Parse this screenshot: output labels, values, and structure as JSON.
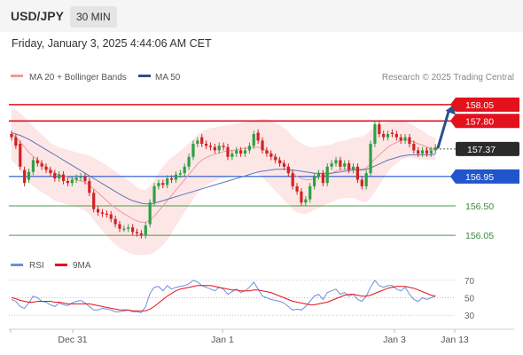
{
  "header": {
    "symbol": "USD/JPY",
    "timeframe": "30 MIN",
    "datetime": "Friday, January 3, 2025 4:44:06 AM CET"
  },
  "legend": {
    "ma20": "MA 20 + Bollinger Bands",
    "ma50": "MA 50",
    "source": "Research © 2025 Trading Central"
  },
  "rsi_legend": {
    "rsi": "RSI",
    "ma9": "9MA"
  },
  "colors": {
    "resistance": "#e3111b",
    "support": "#2255cc",
    "target": "#4a9a4a",
    "candle_up": "#2ea043",
    "candle_down": "#d22222",
    "band_fill": "#fde3e3",
    "ma20": "#f19a9a",
    "ma50": "#5a78b8",
    "arrow": "#2b4f90",
    "rsi_line": "#6f8fd8",
    "rsi_ma": "#e3111b"
  },
  "chart_data": {
    "type": "candlestick",
    "x_ticks": [
      "Dec 31",
      "Jan 1",
      "Jan 3",
      "Jan 13"
    ],
    "y_range": [
      155.82,
      158.32
    ],
    "current_price": 157.37,
    "levels": [
      {
        "value": 158.05,
        "label": "158.05",
        "kind": "resistance"
      },
      {
        "value": 157.8,
        "label": "157.80",
        "kind": "resistance"
      },
      {
        "value": 157.37,
        "label": "157.37",
        "kind": "current"
      },
      {
        "value": 156.95,
        "label": "156.95",
        "kind": "pivot"
      },
      {
        "value": 156.5,
        "label": "156.50",
        "kind": "target"
      },
      {
        "value": 156.05,
        "label": "156.05",
        "kind": "target"
      }
    ],
    "candles_close": [
      157.55,
      157.42,
      157.1,
      156.85,
      157.02,
      157.2,
      157.15,
      157.1,
      157.05,
      157.0,
      156.92,
      156.98,
      156.88,
      156.85,
      156.9,
      156.93,
      156.95,
      156.88,
      156.7,
      156.45,
      156.4,
      156.38,
      156.37,
      156.3,
      156.22,
      156.15,
      156.15,
      156.17,
      156.1,
      156.08,
      156.05,
      156.2,
      156.55,
      156.8,
      156.85,
      156.82,
      156.92,
      156.9,
      156.98,
      157.0,
      157.1,
      157.25,
      157.45,
      157.5,
      157.45,
      157.42,
      157.4,
      157.35,
      157.42,
      157.4,
      157.25,
      157.3,
      157.35,
      157.3,
      157.35,
      157.42,
      157.6,
      157.5,
      157.35,
      157.3,
      157.25,
      157.2,
      157.15,
      157.1,
      157.0,
      156.8,
      156.72,
      156.55,
      156.6,
      156.8,
      156.95,
      157.0,
      156.85,
      157.1,
      157.15,
      157.2,
      157.1,
      157.15,
      157.05,
      157.1,
      156.9,
      156.8,
      157.0,
      157.45,
      157.75,
      157.6,
      157.55,
      157.6,
      157.6,
      157.55,
      157.5,
      157.55,
      157.45,
      157.35,
      157.3,
      157.35,
      157.3,
      157.35,
      157.4
    ],
    "candles_open": [
      157.6,
      157.55,
      157.45,
      157.05,
      156.9,
      157.02,
      157.2,
      157.15,
      157.1,
      157.05,
      157.0,
      156.92,
      156.98,
      156.88,
      156.85,
      156.9,
      156.93,
      156.95,
      156.88,
      156.7,
      156.45,
      156.4,
      156.38,
      156.37,
      156.3,
      156.22,
      156.15,
      156.15,
      156.17,
      156.1,
      156.08,
      156.05,
      156.22,
      156.55,
      156.8,
      156.85,
      156.82,
      156.92,
      156.9,
      156.98,
      157.0,
      157.1,
      157.25,
      157.45,
      157.55,
      157.45,
      157.42,
      157.4,
      157.35,
      157.42,
      157.4,
      157.25,
      157.3,
      157.35,
      157.3,
      157.35,
      157.42,
      157.62,
      157.5,
      157.35,
      157.3,
      157.25,
      157.2,
      157.15,
      157.1,
      157.0,
      156.8,
      156.72,
      156.55,
      156.6,
      156.8,
      156.95,
      157.0,
      156.85,
      157.1,
      157.15,
      157.2,
      157.1,
      157.15,
      157.05,
      157.1,
      156.9,
      156.8,
      157.0,
      157.45,
      157.75,
      157.6,
      157.55,
      157.62,
      157.6,
      157.55,
      157.5,
      157.55,
      157.45,
      157.35,
      157.3,
      157.35,
      157.3,
      157.35
    ],
    "ma20": [
      157.6,
      157.55,
      157.48,
      157.4,
      157.32,
      157.26,
      157.2,
      157.15,
      157.1,
      157.05,
      157.0,
      156.98,
      156.96,
      156.94,
      156.92,
      156.9,
      156.88,
      156.86,
      156.82,
      156.76,
      156.7,
      156.64,
      156.58,
      156.52,
      156.47,
      156.42,
      156.38,
      156.34,
      156.3,
      156.27,
      156.25,
      156.25,
      156.28,
      156.34,
      156.42,
      156.5,
      156.58,
      156.66,
      156.74,
      156.82,
      156.9,
      156.98,
      157.06,
      157.14,
      157.2,
      157.24,
      157.27,
      157.29,
      157.31,
      157.33,
      157.34,
      157.35,
      157.36,
      157.37,
      157.38,
      157.39,
      157.4,
      157.4,
      157.38,
      157.35,
      157.3,
      157.25,
      157.2,
      157.14,
      157.08,
      157.0,
      156.95,
      156.92,
      156.9,
      156.9,
      156.92,
      156.94,
      156.96,
      156.98,
      157.0,
      157.03,
      157.05,
      157.06,
      157.07,
      157.08,
      157.07,
      157.06,
      157.08,
      157.14,
      157.22,
      157.28,
      157.34,
      157.4,
      157.44,
      157.47,
      157.5,
      157.51,
      157.5,
      157.48,
      157.45,
      157.43,
      157.4,
      157.38,
      157.37
    ],
    "ma50": [
      157.62,
      157.6,
      157.58,
      157.55,
      157.52,
      157.48,
      157.44,
      157.4,
      157.36,
      157.32,
      157.28,
      157.24,
      157.2,
      157.16,
      157.12,
      157.08,
      157.04,
      157.0,
      156.96,
      156.92,
      156.88,
      156.84,
      156.8,
      156.76,
      156.72,
      156.68,
      156.64,
      156.61,
      156.58,
      156.56,
      156.54,
      156.53,
      156.53,
      156.54,
      156.56,
      156.58,
      156.6,
      156.62,
      156.64,
      156.66,
      156.68,
      156.7,
      156.72,
      156.74,
      156.76,
      156.78,
      156.8,
      156.82,
      156.84,
      156.86,
      156.88,
      156.9,
      156.92,
      156.94,
      156.96,
      156.98,
      157.0,
      157.02,
      157.03,
      157.04,
      157.05,
      157.06,
      157.06,
      157.06,
      157.06,
      157.05,
      157.04,
      157.03,
      157.02,
      157.01,
      157.0,
      157.0,
      157.0,
      157.0,
      157.0,
      157.01,
      157.02,
      157.03,
      157.04,
      157.05,
      157.05,
      157.05,
      157.06,
      157.08,
      157.11,
      157.14,
      157.17,
      157.2,
      157.22,
      157.24,
      157.26,
      157.27,
      157.28,
      157.28,
      157.28,
      157.28,
      157.28,
      157.28,
      157.29
    ],
    "band_halfwidth": [
      0.4,
      0.42,
      0.44,
      0.46,
      0.46,
      0.46,
      0.45,
      0.44,
      0.43,
      0.42,
      0.42,
      0.42,
      0.42,
      0.42,
      0.42,
      0.42,
      0.42,
      0.43,
      0.45,
      0.48,
      0.5,
      0.52,
      0.54,
      0.55,
      0.56,
      0.56,
      0.56,
      0.55,
      0.54,
      0.52,
      0.5,
      0.5,
      0.52,
      0.55,
      0.58,
      0.6,
      0.6,
      0.58,
      0.55,
      0.52,
      0.5,
      0.48,
      0.46,
      0.45,
      0.44,
      0.43,
      0.42,
      0.41,
      0.4,
      0.4,
      0.4,
      0.4,
      0.4,
      0.4,
      0.4,
      0.4,
      0.4,
      0.42,
      0.45,
      0.48,
      0.5,
      0.52,
      0.54,
      0.55,
      0.56,
      0.56,
      0.55,
      0.54,
      0.52,
      0.5,
      0.48,
      0.47,
      0.46,
      0.45,
      0.44,
      0.44,
      0.44,
      0.44,
      0.45,
      0.46,
      0.48,
      0.5,
      0.52,
      0.52,
      0.5,
      0.46,
      0.42,
      0.38,
      0.35,
      0.32,
      0.3,
      0.28,
      0.26,
      0.25,
      0.24,
      0.22,
      0.2,
      0.18,
      0.17
    ],
    "rsi": {
      "levels": [
        70,
        50,
        30
      ],
      "y_range": [
        15,
        80
      ],
      "rsi_values": [
        48,
        46,
        40,
        38,
        44,
        52,
        50,
        46,
        45,
        42,
        40,
        44,
        42,
        41,
        44,
        46,
        47,
        44,
        40,
        36,
        36,
        38,
        37,
        36,
        34,
        34,
        35,
        36,
        34,
        34,
        33,
        40,
        55,
        62,
        63,
        58,
        64,
        60,
        62,
        63,
        64,
        66,
        70,
        68,
        64,
        62,
        60,
        58,
        62,
        60,
        54,
        57,
        60,
        56,
        58,
        62,
        68,
        60,
        52,
        50,
        48,
        47,
        46,
        44,
        40,
        36,
        37,
        36,
        40,
        46,
        52,
        54,
        48,
        56,
        58,
        60,
        54,
        56,
        52,
        54,
        48,
        46,
        52,
        62,
        70,
        64,
        62,
        64,
        64,
        60,
        58,
        62,
        54,
        48,
        46,
        50,
        48,
        50,
        52
      ],
      "ma_values": [
        50,
        49,
        47,
        46,
        45,
        45,
        46,
        46,
        46,
        46,
        45,
        45,
        44,
        43,
        43,
        43,
        43,
        43,
        43,
        42,
        41,
        40,
        39,
        38,
        37,
        36,
        36,
        36,
        35,
        35,
        35,
        35,
        37,
        40,
        44,
        48,
        52,
        55,
        58,
        60,
        61,
        62,
        63,
        64,
        64,
        64,
        64,
        63,
        62,
        61,
        60,
        59,
        59,
        58,
        58,
        58,
        59,
        59,
        58,
        57,
        56,
        54,
        52,
        50,
        48,
        46,
        45,
        44,
        43,
        42,
        42,
        43,
        44,
        45,
        47,
        49,
        51,
        53,
        54,
        54,
        53,
        52,
        52,
        53,
        55,
        57,
        59,
        61,
        62,
        63,
        63,
        63,
        62,
        61,
        59,
        57,
        55,
        53,
        52
      ]
    }
  }
}
